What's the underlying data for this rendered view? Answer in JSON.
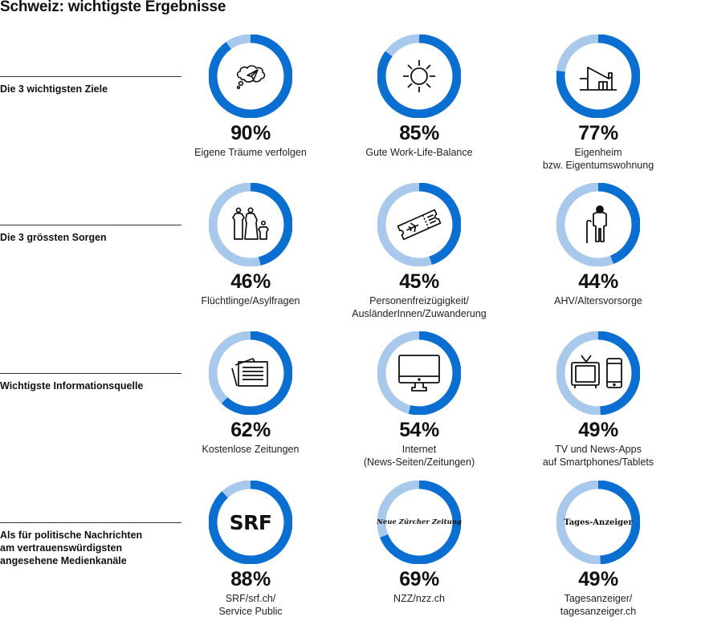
{
  "title": "Schweiz: wichtigste Ergebnisse",
  "colors": {
    "accent": "#0a6fd1",
    "remainder": "#a8c8ec",
    "text": "#111111"
  },
  "sections": [
    {
      "label": "Die 3 wichtigsten Ziele"
    },
    {
      "label": "Die 3 grössten Sorgen"
    },
    {
      "label": "Wichtigste Informationsquelle"
    },
    {
      "label": "Als für politische Nachrichten\nam vertrauenswürdigsten\nangesehene Medienkanäle"
    }
  ],
  "chart_data": {
    "type": "pie",
    "title": "Schweiz: wichtigste Ergebnisse",
    "unit": "%",
    "groups": [
      {
        "name": "Die 3 wichtigsten Ziele",
        "items": [
          {
            "value": 90,
            "label": "Eigene Träume verfolgen",
            "icon": "thought-bubble-paper-plane-icon"
          },
          {
            "value": 85,
            "label": "Gute Work-Life-Balance",
            "icon": "sun-icon"
          },
          {
            "value": 77,
            "label": "Eigenheim\nbzw. Eigentumswohnung",
            "icon": "house-icon"
          }
        ]
      },
      {
        "name": "Die 3 grössten Sorgen",
        "items": [
          {
            "value": 46,
            "label": "Flüchtlinge/Asylfragen",
            "icon": "refugees-family-icon"
          },
          {
            "value": 45,
            "label": "Personenfreizügigkeit/\nAusländerInnen/Zuwanderung",
            "icon": "plane-ticket-icon"
          },
          {
            "value": 44,
            "label": "AHV/Altersvorsorge",
            "icon": "elderly-person-cane-icon"
          }
        ]
      },
      {
        "name": "Wichtigste Informationsquelle",
        "items": [
          {
            "value": 62,
            "label": "Kostenlose Zeitungen",
            "icon": "newspaper-icon"
          },
          {
            "value": 54,
            "label": "Internet\n(News-Seiten/Zeitungen)",
            "icon": "computer-monitor-icon"
          },
          {
            "value": 49,
            "label": "TV und News-Apps\nauf Smartphones/Tablets",
            "icon": "tv-smartphone-icon"
          }
        ]
      },
      {
        "name": "Als für politische Nachrichten am vertrauenswürdigsten angesehene Medienkanäle",
        "items": [
          {
            "value": 88,
            "label": "SRF/srf.ch/\nService Public",
            "icon": "srf-logo-icon",
            "logo_text": "SRF"
          },
          {
            "value": 69,
            "label": "NZZ/nzz.ch",
            "icon": "nzz-logo-icon",
            "logo_text": "Neue Zürcher Zeitung"
          },
          {
            "value": 49,
            "label": "Tagesanzeiger/\ntagesanzeiger.ch",
            "icon": "tages-anzeiger-logo-icon",
            "logo_text": "Tages-Anzeiger"
          }
        ]
      }
    ]
  }
}
